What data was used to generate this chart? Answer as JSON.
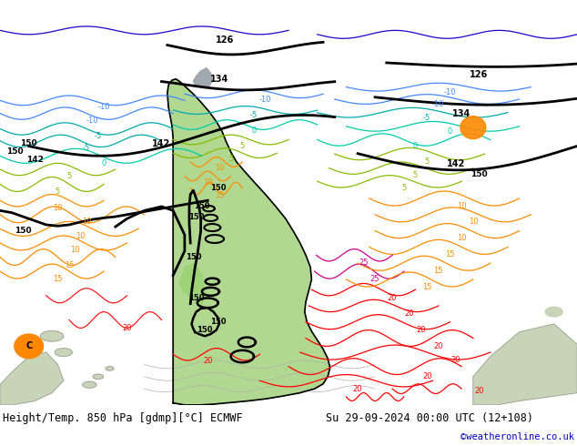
{
  "title_left": "Height/Temp. 850 hPa [gdmp][°C] ECMWF",
  "title_right": "Su 29-09-2024 00:00 UTC (12+108)",
  "credit": "©weatheronline.co.uk",
  "fig_width": 6.34,
  "fig_height": 4.9,
  "dpi": 100,
  "bottom_bar_color": "#e0e0e0",
  "font_size_bottom": 8.5,
  "font_size_credit": 7.5,
  "credit_color": "#0000cc",
  "map_bg": "#d4dde8",
  "land_color": "#c8d4b8",
  "sa_green": "#b0d890",
  "sa_bright_green": "#90d060",
  "black": "#000000",
  "red": "#ff0000",
  "dark_red": "#cc0000",
  "orange": "#ff8c00",
  "yellow_green": "#aacc00",
  "lime": "#88bb00",
  "cyan": "#00ccaa",
  "teal": "#00aaaa",
  "blue": "#4488ff",
  "dark_blue": "#2255cc",
  "magenta": "#cc44aa",
  "gray": "#808080",
  "dark_gray": "#505050",
  "orange_blob": "#ff8800"
}
